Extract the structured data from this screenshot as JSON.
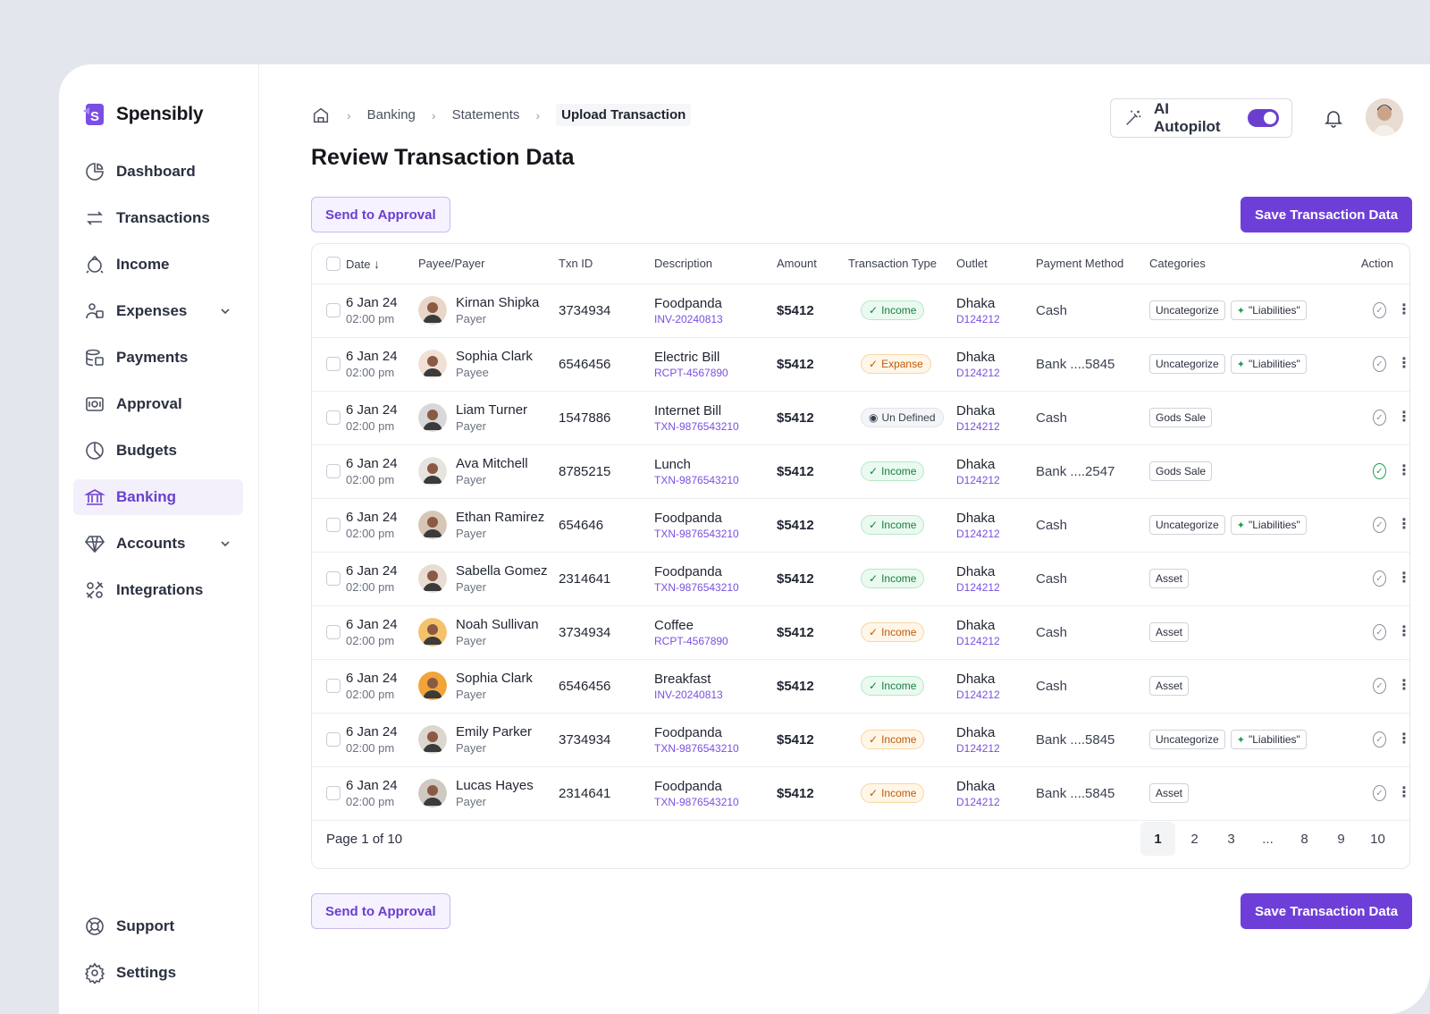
{
  "brand": {
    "name": "Spensibly"
  },
  "sidebar": {
    "items": [
      {
        "label": "Dashboard",
        "icon": "dashboard-icon"
      },
      {
        "label": "Transactions",
        "icon": "transactions-icon"
      },
      {
        "label": "Income",
        "icon": "income-icon"
      },
      {
        "label": "Expenses",
        "icon": "expenses-icon"
      },
      {
        "label": "Payments",
        "icon": "payments-icon"
      },
      {
        "label": "Approval",
        "icon": "approval-icon"
      },
      {
        "label": "Budgets",
        "icon": "budgets-icon"
      },
      {
        "label": "Banking",
        "icon": "bank-icon"
      },
      {
        "label": "Accounts",
        "icon": "accounts-icon"
      },
      {
        "label": "Integrations",
        "icon": "integrations-icon"
      }
    ],
    "bottom": [
      {
        "label": "Support",
        "icon": "support-icon"
      },
      {
        "label": "Settings",
        "icon": "settings-icon"
      }
    ]
  },
  "breadcrumb": [
    "Banking",
    "Statements",
    "Upload Transaction"
  ],
  "page": {
    "title": "Review Transaction Data"
  },
  "header": {
    "autopilot_label": "AI Autopilot"
  },
  "buttons": {
    "send": "Send to Approval",
    "save": "Save Transaction Data"
  },
  "table": {
    "columns": [
      "Date",
      "Payee/Payer",
      "Txn ID",
      "Description",
      "Amount",
      "Transaction Type",
      "Outlet",
      "Payment Method",
      "Categories",
      "Action"
    ],
    "rows": [
      {
        "date": "6 Jan 24",
        "time": "02:00 pm",
        "name": "Kirnan Shipka",
        "role": "Payer",
        "txn": "3734934",
        "desc": "Foodpanda",
        "ref": "INV-20240813",
        "amount": "$5412",
        "type": "Income",
        "type_style": "green",
        "outlet": "Dhaka",
        "outlet_code": "D124212",
        "method": "Cash",
        "cat1": "Uncategorize",
        "cat2": "\"Liabilities\"",
        "done": false
      },
      {
        "date": "6 Jan 24",
        "time": "02:00 pm",
        "name": "Sophia Clark",
        "role": "Payee",
        "txn": "6546456",
        "desc": "Electric Bill",
        "ref": "RCPT-4567890",
        "amount": "$5412",
        "type": "Expanse",
        "type_style": "orange",
        "outlet": "Dhaka",
        "outlet_code": "D124212",
        "method": "Bank ....5845",
        "cat1": "Uncategorize",
        "cat2": "\"Liabilities\"",
        "done": false
      },
      {
        "date": "6 Jan 24",
        "time": "02:00 pm",
        "name": "Liam Turner",
        "role": "Payer",
        "txn": "1547886",
        "desc": "Internet Bill",
        "ref": "TXN-9876543210",
        "amount": "$5412",
        "type": "Un Defined",
        "type_style": "gray",
        "outlet": "Dhaka",
        "outlet_code": "D124212",
        "method": "Cash",
        "cat1": "Gods Sale",
        "cat2": "",
        "done": false
      },
      {
        "date": "6 Jan 24",
        "time": "02:00 pm",
        "name": "Ava Mitchell",
        "role": "Payer",
        "txn": "8785215",
        "desc": "Lunch",
        "ref": "TXN-9876543210",
        "amount": "$5412",
        "type": "Income",
        "type_style": "green",
        "outlet": "Dhaka",
        "outlet_code": "D124212",
        "method": "Bank ....2547",
        "cat1": "Gods Sale",
        "cat2": "",
        "done": true
      },
      {
        "date": "6 Jan 24",
        "time": "02:00 pm",
        "name": "Ethan Ramirez",
        "role": "Payer",
        "txn": "654646",
        "desc": "Foodpanda",
        "ref": "TXN-9876543210",
        "amount": "$5412",
        "type": "Income",
        "type_style": "green",
        "outlet": "Dhaka",
        "outlet_code": "D124212",
        "method": "Cash",
        "cat1": "Uncategorize",
        "cat2": "\"Liabilities\"",
        "done": false
      },
      {
        "date": "6 Jan 24",
        "time": "02:00 pm",
        "name": "Sabella Gomez",
        "role": "Payer",
        "txn": "2314641",
        "desc": "Foodpanda",
        "ref": "TXN-9876543210",
        "amount": "$5412",
        "type": "Income",
        "type_style": "green",
        "outlet": "Dhaka",
        "outlet_code": "D124212",
        "method": "Cash",
        "cat1": "Asset",
        "cat2": "",
        "done": false
      },
      {
        "date": "6 Jan 24",
        "time": "02:00 pm",
        "name": "Noah Sullivan",
        "role": "Payer",
        "txn": "3734934",
        "desc": "Coffee",
        "ref": "RCPT-4567890",
        "amount": "$5412",
        "type": "Income",
        "type_style": "orange",
        "outlet": "Dhaka",
        "outlet_code": "D124212",
        "method": "Cash",
        "cat1": "Asset",
        "cat2": "",
        "done": false
      },
      {
        "date": "6 Jan 24",
        "time": "02:00 pm",
        "name": "Sophia Clark",
        "role": "Payer",
        "txn": "6546456",
        "desc": "Breakfast",
        "ref": "INV-20240813",
        "amount": "$5412",
        "type": "Income",
        "type_style": "green",
        "outlet": "Dhaka",
        "outlet_code": "D124212",
        "method": "Cash",
        "cat1": "Asset",
        "cat2": "",
        "done": false
      },
      {
        "date": "6 Jan 24",
        "time": "02:00 pm",
        "name": "Emily Parker",
        "role": "Payer",
        "txn": "3734934",
        "desc": "Foodpanda",
        "ref": "TXN-9876543210",
        "amount": "$5412",
        "type": "Income",
        "type_style": "orange",
        "outlet": "Dhaka",
        "outlet_code": "D124212",
        "method": "Bank ....5845",
        "cat1": "Uncategorize",
        "cat2": "\"Liabilities\"",
        "done": false
      },
      {
        "date": "6 Jan 24",
        "time": "02:00 pm",
        "name": "Lucas Hayes",
        "role": "Payer",
        "txn": "2314641",
        "desc": "Foodpanda",
        "ref": "TXN-9876543210",
        "amount": "$5412",
        "type": "Income",
        "type_style": "orange",
        "outlet": "Dhaka",
        "outlet_code": "D124212",
        "method": "Bank ....5845",
        "cat1": "Asset",
        "cat2": "",
        "done": false
      }
    ]
  },
  "pagination": {
    "label": "Page 1 of 10",
    "pages": [
      "1",
      "2",
      "3",
      "...",
      "8",
      "9",
      "10"
    ],
    "current": "1"
  },
  "colors": {
    "accent": "#6e3fd8",
    "income": "#17803d",
    "expense": "#c05a0a"
  }
}
